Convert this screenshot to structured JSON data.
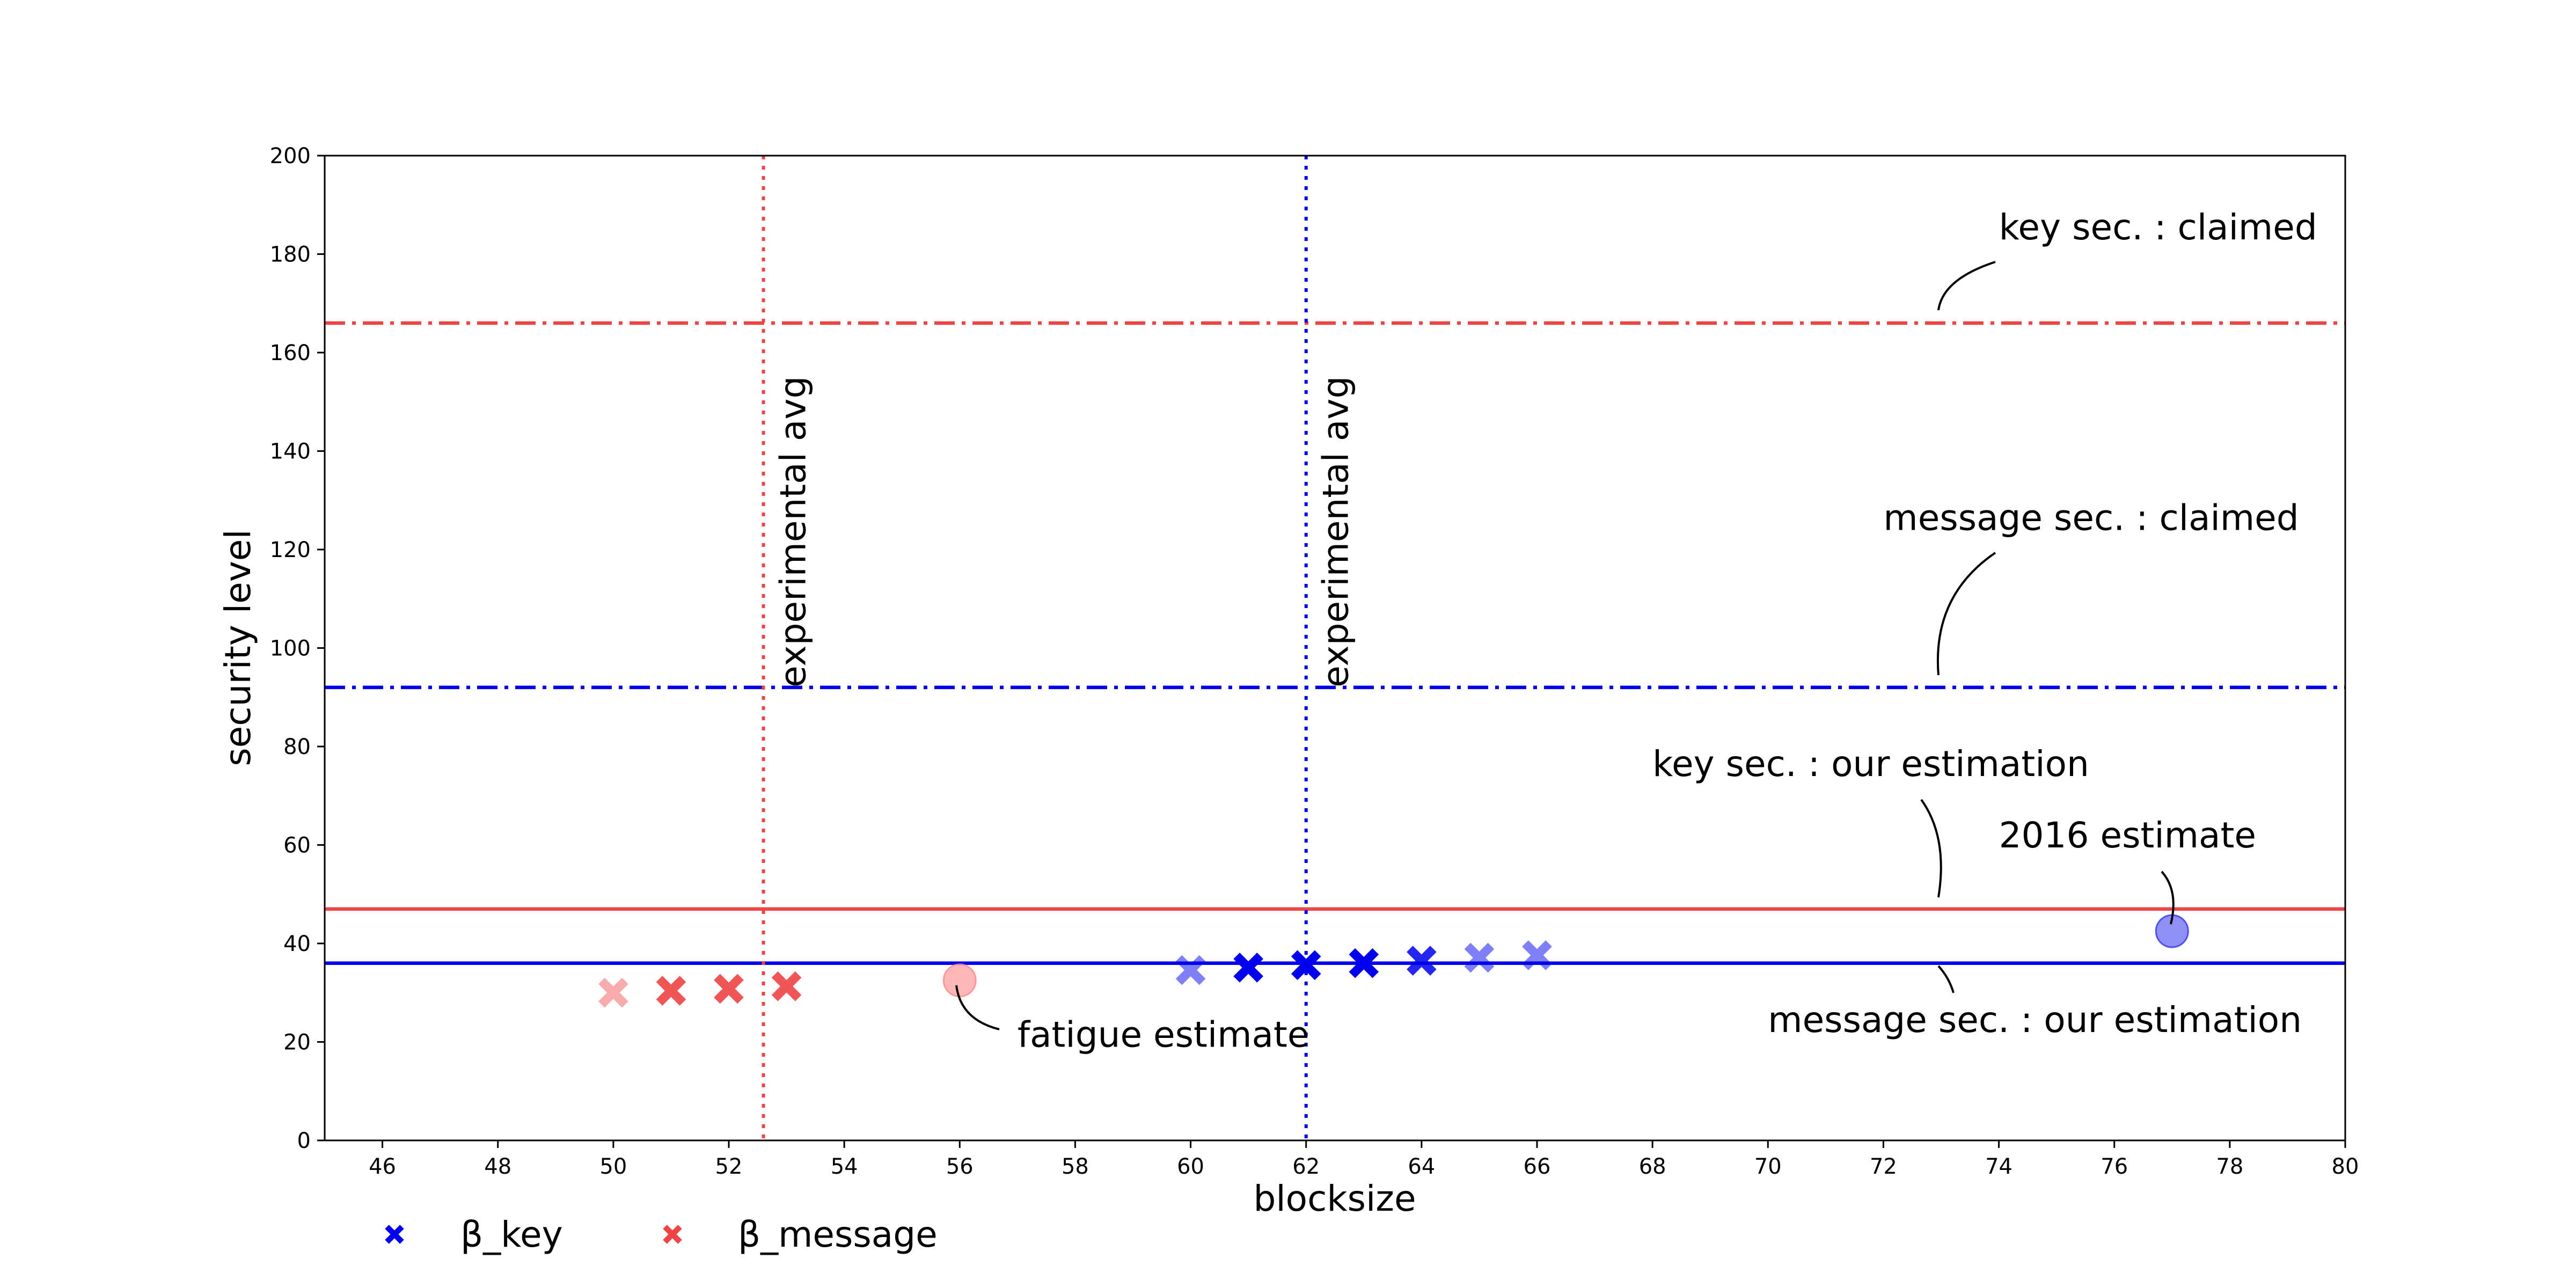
{
  "chart_data": {
    "type": "scatter",
    "xlabel": "blocksize",
    "ylabel": "security level",
    "xlim": [
      45,
      80
    ],
    "ylim": [
      0,
      200
    ],
    "xticks": [
      "46",
      "48",
      "50",
      "52",
      "54",
      "56",
      "58",
      "60",
      "62",
      "64",
      "66",
      "68",
      "70",
      "72",
      "74",
      "76",
      "78",
      "80"
    ],
    "yticks": [
      "0",
      "20",
      "40",
      "60",
      "80",
      "100",
      "120",
      "140",
      "160",
      "180",
      "200"
    ],
    "grid": false,
    "legend_position": "bottom-left",
    "colors": {
      "key": "#0000ee",
      "message": "#ee4444"
    },
    "series": [
      {
        "name": "β_key",
        "color": "#0000ee",
        "marker": "x",
        "points": [
          {
            "x": 60,
            "y": 34.6,
            "alpha": 0.5
          },
          {
            "x": 61,
            "y": 35.1,
            "alpha": 1.0
          },
          {
            "x": 62,
            "y": 35.6,
            "alpha": 1.0
          },
          {
            "x": 63,
            "y": 36.0,
            "alpha": 1.0
          },
          {
            "x": 64,
            "y": 36.5,
            "alpha": 0.85
          },
          {
            "x": 65,
            "y": 37.1,
            "alpha": 0.5
          },
          {
            "x": 66,
            "y": 37.6,
            "alpha": 0.5
          }
        ]
      },
      {
        "name": "β_message",
        "color": "#ee4444",
        "marker": "x",
        "points": [
          {
            "x": 50,
            "y": 30.0,
            "alpha": 0.45
          },
          {
            "x": 51,
            "y": 30.4,
            "alpha": 0.9
          },
          {
            "x": 52,
            "y": 30.8,
            "alpha": 0.9
          },
          {
            "x": 53,
            "y": 31.3,
            "alpha": 0.9
          }
        ]
      }
    ],
    "hlines": [
      {
        "id": "key-claimed",
        "y": 166,
        "color": "#ee4444",
        "style": "dashdot"
      },
      {
        "id": "message-claimed",
        "y": 92,
        "color": "#0000ee",
        "style": "dashdot"
      },
      {
        "id": "key-ours",
        "y": 47,
        "color": "#ee4444",
        "style": "solid"
      },
      {
        "id": "message-ours",
        "y": 36,
        "color": "#0000ee",
        "style": "solid"
      }
    ],
    "vlines": [
      {
        "id": "message-avg",
        "x": 52.6,
        "color": "#ee4444",
        "style": "dotted",
        "label": "experimental avg"
      },
      {
        "id": "key-avg",
        "x": 62.0,
        "color": "#0000ee",
        "style": "dotted",
        "label": "experimental avg"
      }
    ],
    "estimate_points": [
      {
        "id": "fatigue",
        "x": 56,
        "y": 32.5,
        "color": "#ff8888",
        "alpha": 0.6
      },
      {
        "id": "2016",
        "x": 77,
        "y": 42.5,
        "color": "#3333ee",
        "alpha": 0.55
      }
    ],
    "annotations": [
      {
        "id": "key-claimed",
        "text": "key sec. : claimed",
        "tx": 74,
        "ty": 183,
        "ax": 73,
        "ay": 166
      },
      {
        "id": "message-claimed",
        "text": "message sec. : claimed",
        "tx": 72,
        "ty": 124,
        "ax": 73,
        "ay": 92
      },
      {
        "id": "key-ours",
        "text": "key sec. : our estimation",
        "tx": 68,
        "ty": 74,
        "ax": 73,
        "ay": 47
      },
      {
        "id": "2016",
        "text": "2016 estimate",
        "tx": 74,
        "ty": 59.5,
        "ax": 77,
        "ay": 42.5
      },
      {
        "id": "fatigue",
        "text": "fatigue estimate",
        "tx": 57,
        "ty": 19,
        "ax": 56,
        "ay": 32.5
      },
      {
        "id": "message-ours",
        "text": "message sec. : our estimation",
        "tx": 70,
        "ty": 22,
        "ax": 73,
        "ay": 36
      }
    ]
  }
}
